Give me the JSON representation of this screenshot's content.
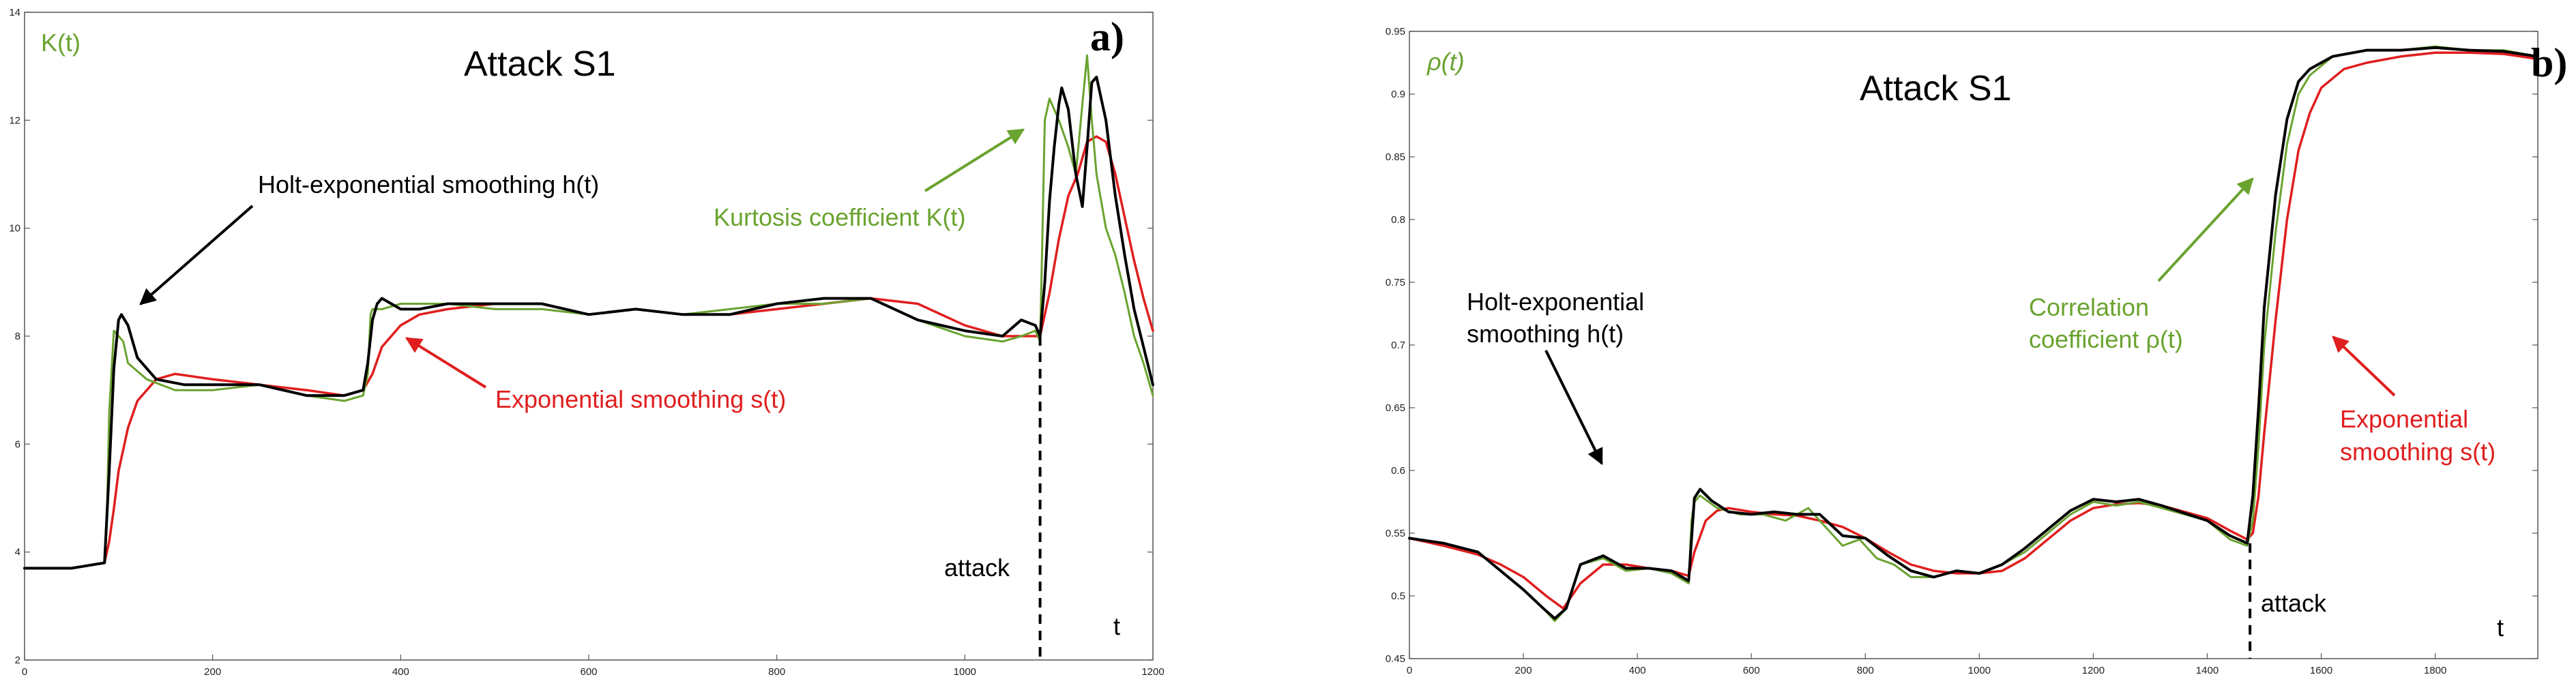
{
  "colors": {
    "kurtosis": "#6aa32f",
    "holt": "#000000",
    "exp": "#e01e1e",
    "axis": "#555555",
    "text_black": "#000000",
    "text_green": "#6aa32f",
    "text_red": "#e01e1e"
  },
  "panels": [
    {
      "title": "Attack  S1",
      "letter": "a)",
      "ylabel": "K(t)",
      "tlabel": "t",
      "attack_label": "attack",
      "annotations": {
        "holt": "Holt-exponential smoothing h(t)",
        "metric": "Kurtosis coefficient K(t)",
        "exp": "Exponential smoothing s(t)"
      }
    },
    {
      "title": "Attack  S1",
      "letter": "b)",
      "ylabel": "ρ(t)",
      "tlabel": "t",
      "attack_label": "attack",
      "annotations": {
        "holt_line1": "Holt-exponential",
        "holt_line2": "smoothing h(t)",
        "metric_line1": "Correlation",
        "metric_line2": "coefficient ρ(t)",
        "exp_line1": "Exponential",
        "exp_line2": "smoothing s(t)"
      }
    }
  ],
  "chart_data": [
    {
      "type": "line",
      "title": "Attack  S1",
      "xlabel": "t",
      "ylabel": "K(t)",
      "xlim": [
        0,
        1200
      ],
      "ylim": [
        2,
        14
      ],
      "xticks": [
        0,
        200,
        400,
        600,
        800,
        1000,
        1200
      ],
      "yticks": [
        2,
        4,
        6,
        8,
        10,
        12,
        14
      ],
      "attack_x": 1080,
      "series": [
        {
          "name": "Kurtosis coefficient K(t)",
          "role": "kurtosis",
          "x": [
            0,
            50,
            85,
            88,
            90,
            95,
            100,
            105,
            110,
            130,
            160,
            200,
            250,
            300,
            340,
            360,
            365,
            368,
            370,
            380,
            400,
            450,
            500,
            550,
            600,
            650,
            700,
            750,
            800,
            850,
            900,
            950,
            1000,
            1040,
            1060,
            1075,
            1080,
            1082,
            1085,
            1090,
            1095,
            1100,
            1110,
            1118,
            1125,
            1130,
            1135,
            1140,
            1150,
            1160,
            1170,
            1180,
            1190,
            1200
          ],
          "values": [
            3.7,
            3.7,
            3.8,
            5.0,
            6.6,
            8.1,
            8.0,
            7.9,
            7.5,
            7.2,
            7.0,
            7.0,
            7.1,
            6.9,
            6.8,
            6.9,
            7.3,
            8.4,
            8.5,
            8.5,
            8.6,
            8.6,
            8.5,
            8.5,
            8.4,
            8.5,
            8.4,
            8.5,
            8.6,
            8.6,
            8.7,
            8.3,
            8.0,
            7.9,
            8.0,
            8.1,
            7.9,
            9.5,
            12.0,
            12.4,
            12.2,
            12.0,
            11.5,
            11.0,
            12.3,
            13.2,
            12.0,
            11.0,
            10.0,
            9.5,
            8.8,
            8.0,
            7.5,
            6.9
          ]
        },
        {
          "name": "Holt-exponential smoothing h(t)",
          "role": "holt",
          "x": [
            0,
            50,
            85,
            90,
            95,
            100,
            103,
            110,
            120,
            140,
            170,
            200,
            250,
            300,
            340,
            360,
            365,
            370,
            375,
            380,
            390,
            400,
            420,
            450,
            500,
            550,
            600,
            650,
            700,
            750,
            800,
            850,
            900,
            950,
            1000,
            1040,
            1060,
            1075,
            1080,
            1085,
            1090,
            1095,
            1100,
            1103,
            1110,
            1118,
            1125,
            1130,
            1135,
            1140,
            1150,
            1160,
            1170,
            1180,
            1190,
            1200
          ],
          "values": [
            3.7,
            3.7,
            3.8,
            5.5,
            7.4,
            8.3,
            8.4,
            8.2,
            7.6,
            7.2,
            7.1,
            7.1,
            7.1,
            6.9,
            6.9,
            7.0,
            7.5,
            8.3,
            8.6,
            8.7,
            8.6,
            8.5,
            8.5,
            8.6,
            8.6,
            8.6,
            8.4,
            8.5,
            8.4,
            8.4,
            8.6,
            8.7,
            8.7,
            8.3,
            8.1,
            8.0,
            8.3,
            8.2,
            8.0,
            9.0,
            10.5,
            11.5,
            12.3,
            12.6,
            12.2,
            11.0,
            10.4,
            11.5,
            12.7,
            12.8,
            12.0,
            10.6,
            9.5,
            8.5,
            7.8,
            7.1
          ]
        },
        {
          "name": "Exponential smoothing s(t)",
          "role": "exp",
          "x": [
            0,
            50,
            85,
            90,
            95,
            100,
            110,
            120,
            140,
            160,
            200,
            250,
            300,
            340,
            360,
            370,
            380,
            400,
            420,
            450,
            500,
            550,
            600,
            650,
            700,
            750,
            800,
            850,
            900,
            950,
            1000,
            1040,
            1060,
            1080,
            1090,
            1100,
            1110,
            1120,
            1130,
            1140,
            1150,
            1160,
            1170,
            1180,
            1190,
            1200
          ],
          "values": [
            3.7,
            3.7,
            3.8,
            4.2,
            4.8,
            5.5,
            6.3,
            6.8,
            7.2,
            7.3,
            7.2,
            7.1,
            7.0,
            6.9,
            7.0,
            7.3,
            7.8,
            8.2,
            8.4,
            8.5,
            8.6,
            8.6,
            8.4,
            8.5,
            8.4,
            8.4,
            8.5,
            8.6,
            8.7,
            8.6,
            8.2,
            8.0,
            8.0,
            8.0,
            8.8,
            9.8,
            10.6,
            11.0,
            11.6,
            11.7,
            11.6,
            11.0,
            10.2,
            9.4,
            8.7,
            8.1
          ]
        }
      ]
    },
    {
      "type": "line",
      "title": "Attack  S1",
      "xlabel": "t",
      "ylabel": "ρ(t)",
      "xlim": [
        0,
        1980
      ],
      "ylim": [
        0.45,
        0.95
      ],
      "xticks": [
        0,
        200,
        400,
        600,
        800,
        1000,
        1200,
        1400,
        1600,
        1800
      ],
      "yticks": [
        0.45,
        0.5,
        0.55,
        0.6,
        0.65,
        0.7,
        0.75,
        0.8,
        0.85,
        0.9,
        0.95
      ],
      "attack_x": 1475,
      "series": [
        {
          "name": "Correlation coefficient ρ(t)",
          "role": "kurtosis",
          "x": [
            0,
            60,
            120,
            160,
            200,
            235,
            255,
            275,
            300,
            340,
            380,
            420,
            460,
            490,
            495,
            500,
            510,
            540,
            580,
            620,
            660,
            700,
            730,
            760,
            790,
            820,
            850,
            880,
            920,
            960,
            1000,
            1040,
            1080,
            1120,
            1160,
            1200,
            1240,
            1280,
            1320,
            1360,
            1400,
            1440,
            1470,
            1480,
            1490,
            1500,
            1520,
            1540,
            1560,
            1580,
            1620,
            1680,
            1740,
            1800,
            1860,
            1920,
            1980
          ],
          "values": [
            0.546,
            0.542,
            0.535,
            0.52,
            0.505,
            0.49,
            0.48,
            0.49,
            0.525,
            0.53,
            0.52,
            0.522,
            0.518,
            0.51,
            0.56,
            0.575,
            0.58,
            0.57,
            0.565,
            0.565,
            0.56,
            0.57,
            0.555,
            0.54,
            0.545,
            0.53,
            0.525,
            0.515,
            0.515,
            0.52,
            0.518,
            0.525,
            0.535,
            0.55,
            0.565,
            0.575,
            0.572,
            0.575,
            0.57,
            0.565,
            0.56,
            0.545,
            0.54,
            0.56,
            0.62,
            0.7,
            0.79,
            0.86,
            0.9,
            0.915,
            0.93,
            0.935,
            0.935,
            0.938,
            0.935,
            0.935,
            0.93
          ]
        },
        {
          "name": "Holt-exponential smoothing h(t)",
          "role": "holt",
          "x": [
            0,
            60,
            120,
            160,
            200,
            235,
            255,
            275,
            300,
            340,
            380,
            420,
            460,
            490,
            500,
            510,
            530,
            560,
            600,
            640,
            680,
            720,
            760,
            800,
            840,
            880,
            920,
            960,
            1000,
            1040,
            1080,
            1120,
            1160,
            1200,
            1240,
            1280,
            1320,
            1360,
            1400,
            1440,
            1470,
            1480,
            1490,
            1500,
            1520,
            1540,
            1560,
            1580,
            1620,
            1680,
            1740,
            1800,
            1860,
            1920,
            1980
          ],
          "values": [
            0.546,
            0.542,
            0.535,
            0.52,
            0.505,
            0.49,
            0.482,
            0.49,
            0.525,
            0.532,
            0.522,
            0.522,
            0.52,
            0.512,
            0.578,
            0.585,
            0.576,
            0.567,
            0.565,
            0.567,
            0.565,
            0.565,
            0.548,
            0.546,
            0.532,
            0.52,
            0.515,
            0.52,
            0.518,
            0.525,
            0.538,
            0.553,
            0.568,
            0.577,
            0.575,
            0.577,
            0.572,
            0.566,
            0.56,
            0.548,
            0.542,
            0.58,
            0.65,
            0.73,
            0.82,
            0.88,
            0.91,
            0.92,
            0.93,
            0.935,
            0.935,
            0.937,
            0.935,
            0.934,
            0.93
          ]
        },
        {
          "name": "Exponential smoothing s(t)",
          "role": "exp",
          "x": [
            0,
            60,
            120,
            160,
            200,
            240,
            270,
            300,
            340,
            380,
            420,
            460,
            490,
            500,
            520,
            540,
            560,
            600,
            640,
            680,
            720,
            760,
            800,
            840,
            880,
            920,
            960,
            1000,
            1040,
            1080,
            1120,
            1160,
            1200,
            1240,
            1280,
            1320,
            1360,
            1400,
            1440,
            1470,
            1480,
            1490,
            1500,
            1520,
            1540,
            1560,
            1580,
            1600,
            1640,
            1680,
            1740,
            1800,
            1860,
            1920,
            1980
          ],
          "values": [
            0.546,
            0.54,
            0.533,
            0.525,
            0.515,
            0.5,
            0.49,
            0.51,
            0.525,
            0.525,
            0.522,
            0.52,
            0.516,
            0.535,
            0.56,
            0.568,
            0.57,
            0.567,
            0.565,
            0.564,
            0.56,
            0.555,
            0.546,
            0.535,
            0.525,
            0.52,
            0.518,
            0.518,
            0.52,
            0.53,
            0.545,
            0.56,
            0.57,
            0.573,
            0.574,
            0.572,
            0.567,
            0.562,
            0.552,
            0.545,
            0.55,
            0.58,
            0.63,
            0.72,
            0.8,
            0.855,
            0.885,
            0.905,
            0.92,
            0.925,
            0.93,
            0.933,
            0.933,
            0.932,
            0.928
          ]
        }
      ]
    }
  ]
}
